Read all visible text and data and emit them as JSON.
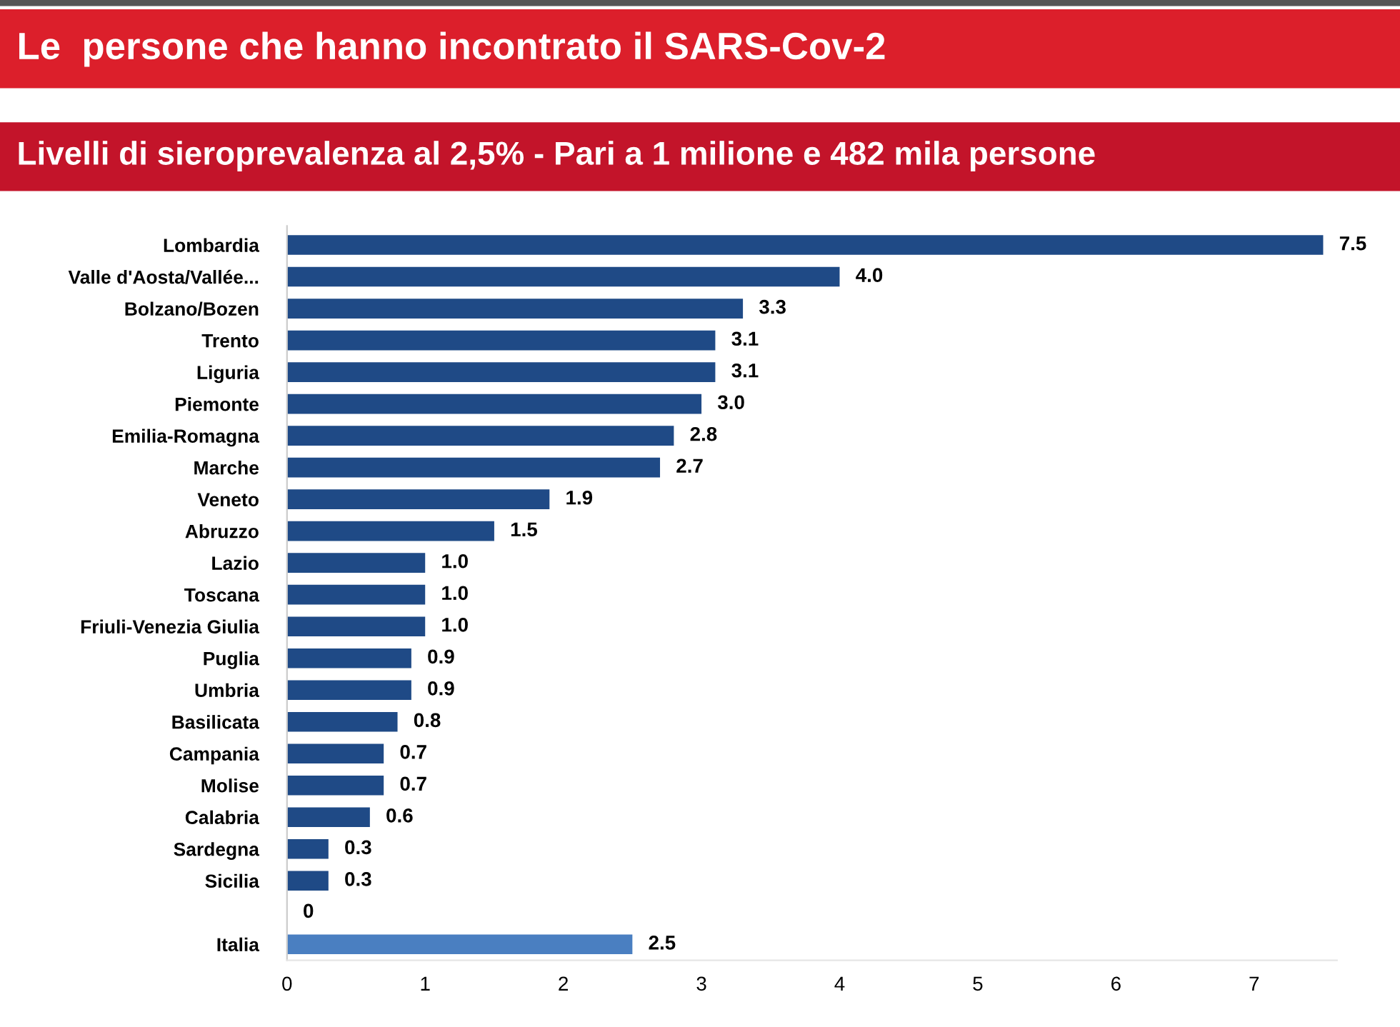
{
  "chart_data": {
    "type": "bar",
    "orientation": "horizontal",
    "title": "Le  persone che hanno incontrato il SARS-Cov-2",
    "subtitle": "Livelli di sieroprevalenza al 2,5% - Pari a 1 milione e 482 mila persone",
    "categories": [
      "Lombardia",
      "Valle d'Aosta/Vallée...",
      "Bolzano/Bozen",
      "Trento",
      "Liguria",
      "Piemonte",
      "Emilia-Romagna",
      "Marche",
      "Veneto",
      "Abruzzo",
      "Lazio",
      "Toscana",
      "Friuli-Venezia Giulia",
      "Puglia",
      "Umbria",
      "Basilicata",
      "Campania",
      "Molise",
      "Calabria",
      "Sardegna",
      "Sicilia",
      null,
      "Italia"
    ],
    "values": [
      7.5,
      4.0,
      3.3,
      3.1,
      3.1,
      3.0,
      2.8,
      2.7,
      1.9,
      1.5,
      1.0,
      1.0,
      1.0,
      0.9,
      0.9,
      0.8,
      0.7,
      0.7,
      0.6,
      0.3,
      0.3,
      0,
      2.5
    ],
    "value_labels": [
      "7.5",
      "4.0",
      "3.3",
      "3.1",
      "3.1",
      "3.0",
      "2.8",
      "2.7",
      "1.9",
      "1.5",
      "1.0",
      "1.0",
      "1.0",
      "0.9",
      "0.9",
      "0.8",
      "0.7",
      "0.7",
      "0.6",
      "0.3",
      "0.3",
      "0",
      "2.5"
    ],
    "colors": [
      "#1f4a86",
      "#1f4a86",
      "#1f4a86",
      "#1f4a86",
      "#1f4a86",
      "#1f4a86",
      "#1f4a86",
      "#1f4a86",
      "#1f4a86",
      "#1f4a86",
      "#1f4a86",
      "#1f4a86",
      "#1f4a86",
      "#1f4a86",
      "#1f4a86",
      "#1f4a86",
      "#1f4a86",
      "#1f4a86",
      "#1f4a86",
      "#1f4a86",
      "#1f4a86",
      "#1f4a86",
      "#4a7fc1"
    ],
    "xlim": [
      0,
      7.6
    ],
    "xticks": [
      0,
      1,
      2,
      3,
      4,
      5,
      6,
      7
    ],
    "grid": false,
    "legend": false
  }
}
